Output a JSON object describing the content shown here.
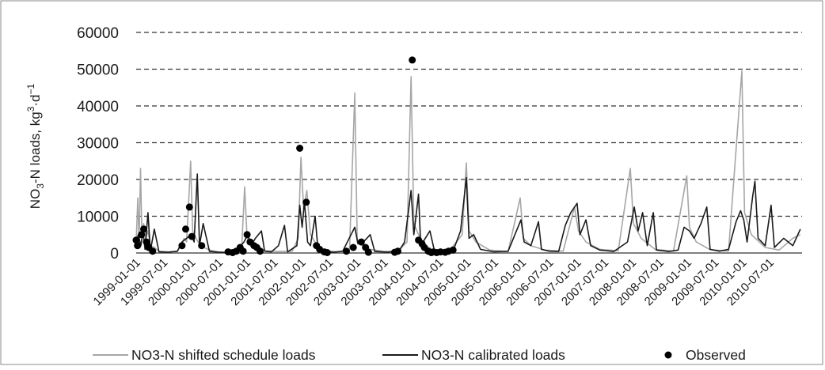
{
  "chart_data": {
    "type": "line",
    "title": "",
    "ylabel_parts": {
      "pre": "NO",
      "sub": "3",
      "mid": "-N loads, kg",
      "sup1": "3",
      "dot": "·d",
      "sup2": "−1"
    },
    "y_ticks": [
      "0",
      "10000",
      "20000",
      "30000",
      "40000",
      "50000",
      "60000"
    ],
    "ylim": [
      0,
      60000
    ],
    "x_range": [
      "1999-01-01",
      "2011-01-31"
    ],
    "x_ticks": [
      "1999-01-01",
      "1999-07-01",
      "2000-01-01",
      "2000-07-01",
      "2001-01-01",
      "2001-07-01",
      "2002-01-01",
      "2002-07-01",
      "2003-01-01",
      "2003-07-01",
      "2004-01-01",
      "2004-07-01",
      "2005-01-01",
      "2005-07-01",
      "2006-01-01",
      "2006-07-01",
      "2007-01-01",
      "2007-07-01",
      "2008-01-01",
      "2008-07-01",
      "2009-01-01",
      "2009-07-01",
      "2010-01-01",
      "2010-07-01"
    ],
    "grid": "horizontal dashed",
    "legend_position": "bottom",
    "series": [
      {
        "name": "NO3-N shifted schedule loads",
        "kind": "line",
        "color": "#a6a6a6",
        "points": [
          [
            "1999-01-01",
            3000
          ],
          [
            "1999-01-12",
            15000
          ],
          [
            "1999-01-20",
            2000
          ],
          [
            "1999-01-30",
            23000
          ],
          [
            "1999-02-08",
            5000
          ],
          [
            "1999-02-20",
            8000
          ],
          [
            "1999-03-05",
            4000
          ],
          [
            "1999-03-20",
            6000
          ],
          [
            "1999-04-05",
            2000
          ],
          [
            "1999-05-01",
            1500
          ],
          [
            "1999-06-01",
            500
          ],
          [
            "1999-08-01",
            300
          ],
          [
            "1999-10-01",
            400
          ],
          [
            "1999-11-15",
            4000
          ],
          [
            "1999-12-01",
            3000
          ],
          [
            "1999-12-15",
            14000
          ],
          [
            "1999-12-28",
            25000
          ],
          [
            "2000-01-10",
            6000
          ],
          [
            "2000-02-01",
            4000
          ],
          [
            "2000-03-01",
            2000
          ],
          [
            "2000-05-01",
            800
          ],
          [
            "2000-07-01",
            300
          ],
          [
            "2000-09-01",
            200
          ],
          [
            "2000-11-01",
            500
          ],
          [
            "2000-12-01",
            2000
          ],
          [
            "2000-12-20",
            18000
          ],
          [
            "2001-01-05",
            4000
          ],
          [
            "2001-02-01",
            3000
          ],
          [
            "2001-03-15",
            2000
          ],
          [
            "2001-05-01",
            600
          ],
          [
            "2001-08-01",
            400
          ],
          [
            "2001-11-01",
            500
          ],
          [
            "2001-12-10",
            4000
          ],
          [
            "2001-12-28",
            26000
          ],
          [
            "2002-01-15",
            12000
          ],
          [
            "2002-02-05",
            17000
          ],
          [
            "2002-03-01",
            5000
          ],
          [
            "2002-04-15",
            2000
          ],
          [
            "2002-06-01",
            600
          ],
          [
            "2002-09-01",
            300
          ],
          [
            "2002-11-15",
            1000
          ],
          [
            "2002-12-20",
            43500
          ],
          [
            "2003-01-05",
            3000
          ],
          [
            "2003-02-15",
            2000
          ],
          [
            "2003-04-01",
            1000
          ],
          [
            "2003-07-01",
            400
          ],
          [
            "2003-10-01",
            500
          ],
          [
            "2003-12-01",
            3000
          ],
          [
            "2003-12-28",
            48000
          ],
          [
            "2004-01-15",
            8000
          ],
          [
            "2004-02-15",
            5000
          ],
          [
            "2004-04-01",
            2000
          ],
          [
            "2004-06-01",
            600
          ],
          [
            "2004-09-01",
            300
          ],
          [
            "2004-12-01",
            5000
          ],
          [
            "2004-12-28",
            24500
          ],
          [
            "2005-01-15",
            6000
          ],
          [
            "2005-03-01",
            3000
          ],
          [
            "2005-06-01",
            800
          ],
          [
            "2005-10-01",
            400
          ],
          [
            "2005-12-20",
            15000
          ],
          [
            "2006-01-10",
            4000
          ],
          [
            "2006-03-01",
            2000
          ],
          [
            "2006-06-01",
            800
          ],
          [
            "2006-10-01",
            500
          ],
          [
            "2006-12-15",
            12500
          ],
          [
            "2007-01-10",
            6000
          ],
          [
            "2007-03-01",
            3000
          ],
          [
            "2007-06-01",
            1000
          ],
          [
            "2007-10-01",
            600
          ],
          [
            "2007-12-20",
            23000
          ],
          [
            "2008-01-10",
            8000
          ],
          [
            "2008-03-01",
            4000
          ],
          [
            "2008-06-01",
            1000
          ],
          [
            "2008-10-01",
            500
          ],
          [
            "2008-12-28",
            21000
          ],
          [
            "2009-01-15",
            7000
          ],
          [
            "2009-03-01",
            3000
          ],
          [
            "2009-06-01",
            900
          ],
          [
            "2009-10-01",
            500
          ],
          [
            "2009-12-28",
            49500
          ],
          [
            "2010-01-15",
            11000
          ],
          [
            "2010-03-01",
            5000
          ],
          [
            "2010-06-01",
            1500
          ],
          [
            "2010-09-01",
            800
          ],
          [
            "2010-12-01",
            4000
          ],
          [
            "2011-01-20",
            5000
          ]
        ]
      },
      {
        "name": "NO3-N calibrated loads",
        "kind": "line",
        "color": "#1a1a1a",
        "points": [
          [
            "1999-01-01",
            3000
          ],
          [
            "1999-01-15",
            5000
          ],
          [
            "1999-02-01",
            2000
          ],
          [
            "1999-02-15",
            6000
          ],
          [
            "1999-03-01",
            1000
          ],
          [
            "1999-03-20",
            11000
          ],
          [
            "1999-04-05",
            500
          ],
          [
            "1999-05-01",
            6500
          ],
          [
            "1999-06-01",
            300
          ],
          [
            "1999-08-01",
            200
          ],
          [
            "1999-10-01",
            500
          ],
          [
            "1999-11-01",
            3000
          ],
          [
            "1999-12-01",
            4000
          ],
          [
            "2000-01-01",
            5000
          ],
          [
            "2000-01-20",
            3000
          ],
          [
            "2000-02-10",
            21500
          ],
          [
            "2000-02-25",
            2000
          ],
          [
            "2000-03-20",
            8000
          ],
          [
            "2000-05-01",
            400
          ],
          [
            "2000-07-01",
            200
          ],
          [
            "2000-09-01",
            100
          ],
          [
            "2000-11-01",
            800
          ],
          [
            "2000-12-15",
            3000
          ],
          [
            "2001-01-10",
            5000
          ],
          [
            "2001-02-01",
            2000
          ],
          [
            "2001-03-01",
            4000
          ],
          [
            "2001-04-10",
            6000
          ],
          [
            "2001-05-01",
            500
          ],
          [
            "2001-06-15",
            300
          ],
          [
            "2001-08-01",
            2000
          ],
          [
            "2001-09-10",
            7500
          ],
          [
            "2001-10-01",
            300
          ],
          [
            "2001-12-01",
            2000
          ],
          [
            "2001-12-20",
            13000
          ],
          [
            "2002-01-05",
            7000
          ],
          [
            "2002-01-20",
            14000
          ],
          [
            "2002-02-10",
            3000
          ],
          [
            "2002-03-01",
            2000
          ],
          [
            "2002-04-01",
            10000
          ],
          [
            "2002-04-20",
            1000
          ],
          [
            "2002-06-01",
            400
          ],
          [
            "2002-08-01",
            200
          ],
          [
            "2002-10-01",
            500
          ],
          [
            "2002-12-20",
            7000
          ],
          [
            "2003-01-10",
            2500
          ],
          [
            "2003-02-15",
            3000
          ],
          [
            "2003-04-01",
            5000
          ],
          [
            "2003-05-01",
            400
          ],
          [
            "2003-08-01",
            200
          ],
          [
            "2003-10-15",
            1000
          ],
          [
            "2003-11-15",
            3000
          ],
          [
            "2003-12-28",
            17000
          ],
          [
            "2004-01-15",
            5000
          ],
          [
            "2004-02-15",
            16000
          ],
          [
            "2004-03-01",
            2000
          ],
          [
            "2004-05-01",
            6000
          ],
          [
            "2004-06-01",
            300
          ],
          [
            "2004-08-01",
            200
          ],
          [
            "2004-10-01",
            500
          ],
          [
            "2004-11-20",
            6000
          ],
          [
            "2004-12-28",
            20500
          ],
          [
            "2005-01-15",
            4000
          ],
          [
            "2005-02-15",
            5000
          ],
          [
            "2005-04-01",
            1000
          ],
          [
            "2005-07-01",
            300
          ],
          [
            "2005-10-01",
            500
          ],
          [
            "2005-12-25",
            9000
          ],
          [
            "2006-01-15",
            3000
          ],
          [
            "2006-03-01",
            2000
          ],
          [
            "2006-04-20",
            8500
          ],
          [
            "2006-05-10",
            1000
          ],
          [
            "2006-07-01",
            500
          ],
          [
            "2006-09-01",
            400
          ],
          [
            "2006-10-15",
            7500
          ],
          [
            "2006-11-20",
            11000
          ],
          [
            "2007-01-01",
            13500
          ],
          [
            "2007-01-20",
            5000
          ],
          [
            "2007-03-01",
            9000
          ],
          [
            "2007-04-01",
            2000
          ],
          [
            "2007-06-01",
            800
          ],
          [
            "2007-09-01",
            400
          ],
          [
            "2007-12-01",
            3000
          ],
          [
            "2007-12-25",
            8000
          ],
          [
            "2008-01-15",
            12500
          ],
          [
            "2008-02-10",
            6000
          ],
          [
            "2008-03-10",
            11000
          ],
          [
            "2008-04-10",
            2000
          ],
          [
            "2008-05-20",
            11000
          ],
          [
            "2008-06-10",
            800
          ],
          [
            "2008-09-01",
            400
          ],
          [
            "2008-11-01",
            800
          ],
          [
            "2008-12-10",
            7000
          ],
          [
            "2009-01-15",
            6000
          ],
          [
            "2009-02-15",
            4000
          ],
          [
            "2009-04-01",
            8000
          ],
          [
            "2009-05-10",
            12500
          ],
          [
            "2009-06-01",
            1000
          ],
          [
            "2009-08-01",
            500
          ],
          [
            "2009-10-01",
            1000
          ],
          [
            "2009-11-20",
            8500
          ],
          [
            "2009-12-20",
            11500
          ],
          [
            "2010-01-10",
            9000
          ],
          [
            "2010-02-01",
            3000
          ],
          [
            "2010-03-10",
            15500
          ],
          [
            "2010-03-25",
            19500
          ],
          [
            "2010-04-15",
            4000
          ],
          [
            "2010-06-01",
            2000
          ],
          [
            "2010-07-10",
            13000
          ],
          [
            "2010-08-01",
            1500
          ],
          [
            "2010-10-01",
            4000
          ],
          [
            "2010-12-01",
            2000
          ],
          [
            "2011-01-20",
            6500
          ]
        ]
      },
      {
        "name": "Observed",
        "kind": "scatter",
        "color": "#000000",
        "points": [
          [
            "1999-01-01",
            3500
          ],
          [
            "1999-01-10",
            2000
          ],
          [
            "1999-02-05",
            5000
          ],
          [
            "1999-02-20",
            6500
          ],
          [
            "1999-03-10",
            3000
          ],
          [
            "1999-03-25",
            1500
          ],
          [
            "1999-04-20",
            500
          ],
          [
            "1999-11-01",
            2000
          ],
          [
            "1999-11-25",
            6500
          ],
          [
            "1999-12-20",
            12500
          ],
          [
            "2000-01-05",
            4500
          ],
          [
            "2000-03-10",
            2000
          ],
          [
            "2000-09-01",
            300
          ],
          [
            "2000-10-01",
            100
          ],
          [
            "2000-10-25",
            500
          ],
          [
            "2000-11-20",
            1500
          ],
          [
            "2000-12-10",
            500
          ],
          [
            "2001-01-05",
            5000
          ],
          [
            "2001-01-25",
            3000
          ],
          [
            "2001-02-20",
            2000
          ],
          [
            "2001-03-10",
            1500
          ],
          [
            "2001-04-01",
            500
          ],
          [
            "2001-12-20",
            28500
          ],
          [
            "2002-02-01",
            13800
          ],
          [
            "2002-04-10",
            2000
          ],
          [
            "2002-05-01",
            1000
          ],
          [
            "2002-06-01",
            300
          ],
          [
            "2002-06-20",
            100
          ],
          [
            "2002-10-25",
            500
          ],
          [
            "2002-12-10",
            1500
          ],
          [
            "2003-02-01",
            3000
          ],
          [
            "2003-03-01",
            1500
          ],
          [
            "2003-03-20",
            200
          ],
          [
            "2003-09-10",
            200
          ],
          [
            "2003-10-01",
            500
          ],
          [
            "2004-01-05",
            52500
          ],
          [
            "2004-02-15",
            3500
          ],
          [
            "2004-03-10",
            2500
          ],
          [
            "2004-03-25",
            1500
          ],
          [
            "2004-04-20",
            500
          ],
          [
            "2004-05-10",
            100
          ],
          [
            "2004-05-25",
            300
          ],
          [
            "2004-06-15",
            100
          ],
          [
            "2004-07-10",
            300
          ],
          [
            "2004-08-10",
            200
          ],
          [
            "2004-09-01",
            500
          ],
          [
            "2004-10-01",
            800
          ]
        ]
      }
    ]
  }
}
